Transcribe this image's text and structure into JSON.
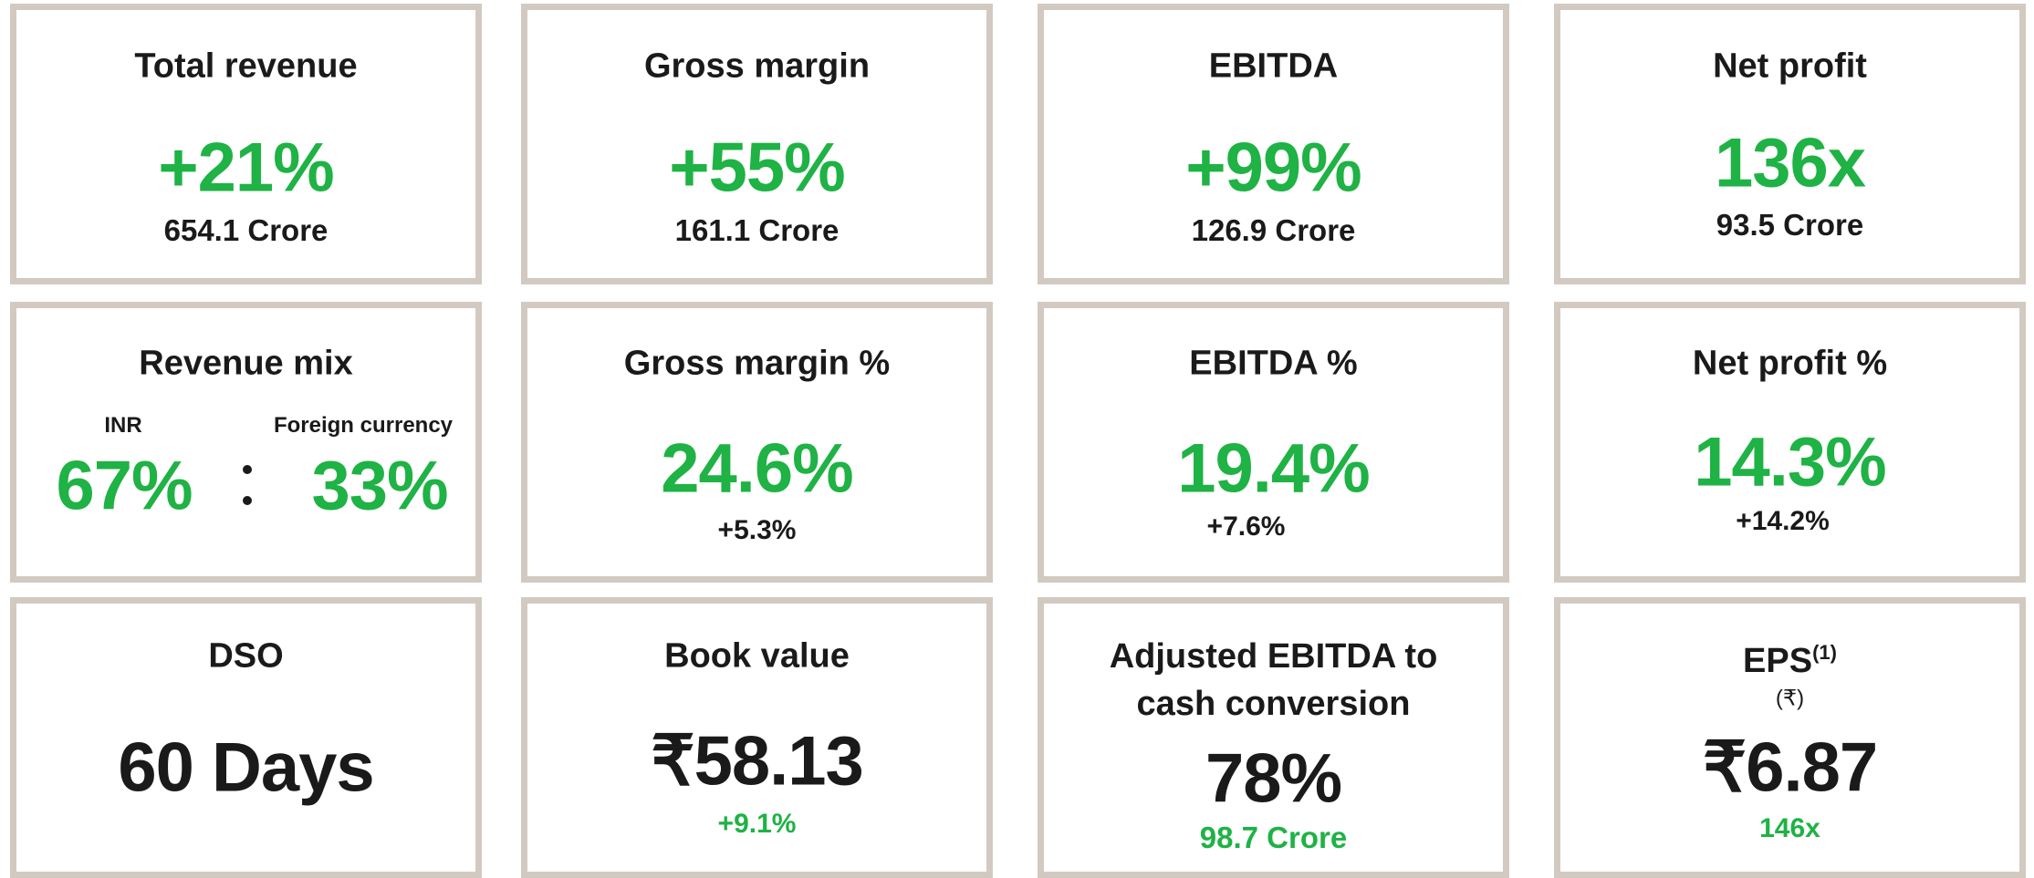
{
  "cards": [
    {
      "title": "Total revenue",
      "value": "+21%",
      "detail": "654.1 Crore"
    },
    {
      "title": "Gross margin",
      "value": "+55%",
      "detail": "161.1 Crore"
    },
    {
      "title": "EBITDA",
      "value": "+99%",
      "detail": "126.9 Crore"
    },
    {
      "title": "Net profit",
      "value": "136x",
      "detail": "93.5 Crore"
    },
    {
      "title": "Revenue mix",
      "mix": [
        {
          "label": "INR",
          "value": "67%"
        },
        {
          "label": "Foreign currency",
          "value": "33%"
        }
      ]
    },
    {
      "title": "Gross margin %",
      "value": "24.6%",
      "detail": "+5.3%"
    },
    {
      "title": "EBITDA %",
      "value": "19.4%",
      "detail": "+7.6%"
    },
    {
      "title": "Net profit %",
      "value": "14.3%",
      "detail": "+14.2%"
    },
    {
      "title": "DSO",
      "value": "60 Days"
    },
    {
      "title": "Book value",
      "value": "₹58.13",
      "detail": "+9.1%"
    },
    {
      "title": "Adjusted EBITDA to cash conversion",
      "value": "78%",
      "detail": "98.7 Crore"
    },
    {
      "title": "EPS",
      "note": "(1)",
      "unit": "(₹)",
      "value": "₹6.87",
      "detail": "146x"
    }
  ]
}
